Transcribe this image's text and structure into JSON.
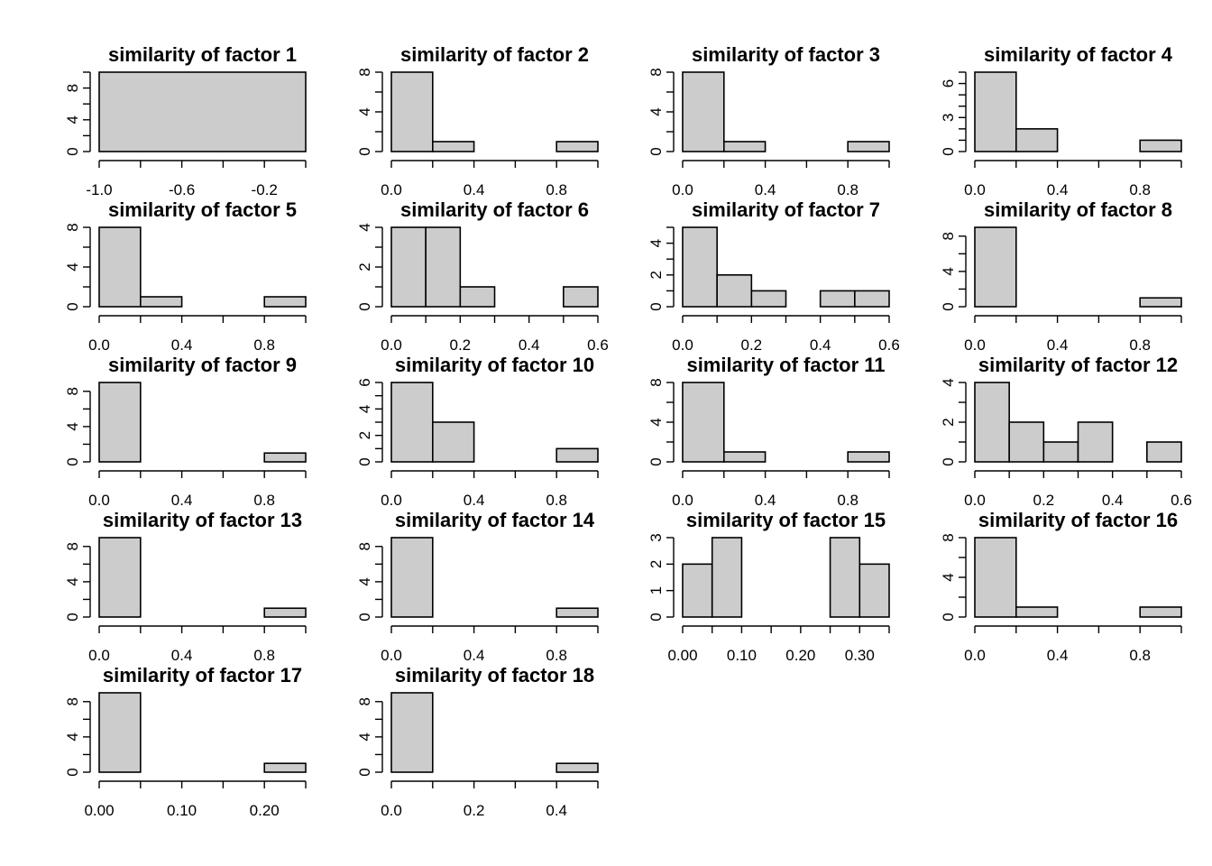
{
  "chart_data": [
    {
      "type": "bar",
      "title": "similarity of factor 1",
      "breaks": [
        -1.0,
        0.0
      ],
      "counts": [
        10
      ],
      "xlim": [
        -1.0,
        0.0
      ],
      "xticks": [
        -1.0,
        -0.8,
        -0.6,
        -0.4,
        -0.2,
        0.0
      ],
      "xtick_labels": [
        "-1.0",
        "-0.6",
        "-0.2"
      ],
      "xtick_label_positions": [
        -1.0,
        -0.6,
        -0.2
      ],
      "ylim": [
        0,
        10
      ],
      "yticks": [
        0,
        2,
        4,
        6,
        8,
        10
      ],
      "ytick_labels": [
        "0",
        "4",
        "8"
      ],
      "ytick_label_positions": [
        0,
        4,
        8
      ],
      "bar_fill": "#cccccc"
    },
    {
      "type": "bar",
      "title": "similarity of factor 2",
      "breaks": [
        0,
        0.2,
        0.4,
        0.6,
        0.8,
        1.0
      ],
      "counts": [
        8,
        1,
        0,
        0,
        1
      ],
      "xlim": [
        0,
        1.0
      ],
      "xticks": [
        0,
        0.2,
        0.4,
        0.6,
        0.8,
        1.0
      ],
      "xtick_labels": [
        "0.0",
        "0.4",
        "0.8"
      ],
      "xtick_label_positions": [
        0,
        0.4,
        0.8
      ],
      "ylim": [
        0,
        8
      ],
      "yticks": [
        0,
        2,
        4,
        6,
        8
      ],
      "ytick_labels": [
        "0",
        "4",
        "8"
      ],
      "ytick_label_positions": [
        0,
        4,
        8
      ],
      "bar_fill": "#cccccc"
    },
    {
      "type": "bar",
      "title": "similarity of factor 3",
      "breaks": [
        0,
        0.2,
        0.4,
        0.6,
        0.8,
        1.0
      ],
      "counts": [
        8,
        1,
        0,
        0,
        1
      ],
      "xlim": [
        0,
        1.0
      ],
      "xticks": [
        0,
        0.2,
        0.4,
        0.6,
        0.8,
        1.0
      ],
      "xtick_labels": [
        "0.0",
        "0.4",
        "0.8"
      ],
      "xtick_label_positions": [
        0,
        0.4,
        0.8
      ],
      "ylim": [
        0,
        8
      ],
      "yticks": [
        0,
        2,
        4,
        6,
        8
      ],
      "ytick_labels": [
        "0",
        "4",
        "8"
      ],
      "ytick_label_positions": [
        0,
        4,
        8
      ],
      "bar_fill": "#cccccc"
    },
    {
      "type": "bar",
      "title": "similarity of factor 4",
      "breaks": [
        0,
        0.2,
        0.4,
        0.6,
        0.8,
        1.0
      ],
      "counts": [
        7,
        2,
        0,
        0,
        1
      ],
      "xlim": [
        0,
        1.0
      ],
      "xticks": [
        0,
        0.2,
        0.4,
        0.6,
        0.8,
        1.0
      ],
      "xtick_labels": [
        "0.0",
        "0.4",
        "0.8"
      ],
      "xtick_label_positions": [
        0,
        0.4,
        0.8
      ],
      "ylim": [
        0,
        7
      ],
      "yticks": [
        0,
        1,
        2,
        3,
        4,
        5,
        6,
        7
      ],
      "ytick_labels": [
        "0",
        "3",
        "6"
      ],
      "ytick_label_positions": [
        0,
        3,
        6
      ],
      "bar_fill": "#cccccc"
    },
    {
      "type": "bar",
      "title": "similarity of factor 5",
      "breaks": [
        0,
        0.2,
        0.4,
        0.6,
        0.8,
        1.0
      ],
      "counts": [
        8,
        1,
        0,
        0,
        1
      ],
      "xlim": [
        0,
        1.0
      ],
      "xticks": [
        0,
        0.2,
        0.4,
        0.6,
        0.8,
        1.0
      ],
      "xtick_labels": [
        "0.0",
        "0.4",
        "0.8"
      ],
      "xtick_label_positions": [
        0,
        0.4,
        0.8
      ],
      "ylim": [
        0,
        8
      ],
      "yticks": [
        0,
        2,
        4,
        6,
        8
      ],
      "ytick_labels": [
        "0",
        "4",
        "8"
      ],
      "ytick_label_positions": [
        0,
        4,
        8
      ],
      "bar_fill": "#cccccc"
    },
    {
      "type": "bar",
      "title": "similarity of factor 6",
      "breaks": [
        0,
        0.1,
        0.2,
        0.3,
        0.4,
        0.5,
        0.6
      ],
      "counts": [
        4,
        4,
        1,
        0,
        0,
        1
      ],
      "xlim": [
        0,
        0.6
      ],
      "xticks": [
        0,
        0.1,
        0.2,
        0.3,
        0.4,
        0.5,
        0.6
      ],
      "xtick_labels": [
        "0.0",
        "0.2",
        "0.4",
        "0.6"
      ],
      "xtick_label_positions": [
        0,
        0.2,
        0.4,
        0.6
      ],
      "ylim": [
        0,
        4
      ],
      "yticks": [
        0,
        1,
        2,
        3,
        4
      ],
      "ytick_labels": [
        "0",
        "2",
        "4"
      ],
      "ytick_label_positions": [
        0,
        2,
        4
      ],
      "bar_fill": "#cccccc"
    },
    {
      "type": "bar",
      "title": "similarity of factor 7",
      "breaks": [
        0,
        0.1,
        0.2,
        0.3,
        0.4,
        0.5,
        0.6
      ],
      "counts": [
        5,
        2,
        1,
        0,
        1,
        1
      ],
      "xlim": [
        0,
        0.6
      ],
      "xticks": [
        0,
        0.1,
        0.2,
        0.3,
        0.4,
        0.5,
        0.6
      ],
      "xtick_labels": [
        "0.0",
        "0.2",
        "0.4",
        "0.6"
      ],
      "xtick_label_positions": [
        0,
        0.2,
        0.4,
        0.6
      ],
      "ylim": [
        0,
        5
      ],
      "yticks": [
        0,
        1,
        2,
        3,
        4,
        5
      ],
      "ytick_labels": [
        "0",
        "2",
        "4"
      ],
      "ytick_label_positions": [
        0,
        2,
        4
      ],
      "bar_fill": "#cccccc"
    },
    {
      "type": "bar",
      "title": "similarity of factor 8",
      "breaks": [
        0,
        0.2,
        0.4,
        0.6,
        0.8,
        1.0
      ],
      "counts": [
        9,
        0,
        0,
        0,
        1
      ],
      "xlim": [
        0,
        1.0
      ],
      "xticks": [
        0,
        0.2,
        0.4,
        0.6,
        0.8,
        1.0
      ],
      "xtick_labels": [
        "0.0",
        "0.4",
        "0.8"
      ],
      "xtick_label_positions": [
        0,
        0.4,
        0.8
      ],
      "ylim": [
        0,
        9
      ],
      "yticks": [
        0,
        2,
        4,
        6,
        8
      ],
      "ytick_labels": [
        "0",
        "4",
        "8"
      ],
      "ytick_label_positions": [
        0,
        4,
        8
      ],
      "bar_fill": "#cccccc"
    },
    {
      "type": "bar",
      "title": "similarity of factor 9",
      "breaks": [
        0,
        0.2,
        0.4,
        0.6,
        0.8,
        1.0
      ],
      "counts": [
        9,
        0,
        0,
        0,
        1
      ],
      "xlim": [
        0,
        1.0
      ],
      "xticks": [
        0,
        0.2,
        0.4,
        0.6,
        0.8,
        1.0
      ],
      "xtick_labels": [
        "0.0",
        "0.4",
        "0.8"
      ],
      "xtick_label_positions": [
        0,
        0.4,
        0.8
      ],
      "ylim": [
        0,
        9
      ],
      "yticks": [
        0,
        2,
        4,
        6,
        8
      ],
      "ytick_labels": [
        "0",
        "4",
        "8"
      ],
      "ytick_label_positions": [
        0,
        4,
        8
      ],
      "bar_fill": "#cccccc"
    },
    {
      "type": "bar",
      "title": "similarity of factor 10",
      "breaks": [
        0,
        0.2,
        0.4,
        0.6,
        0.8,
        1.0
      ],
      "counts": [
        6,
        3,
        0,
        0,
        1
      ],
      "xlim": [
        0,
        1.0
      ],
      "xticks": [
        0,
        0.2,
        0.4,
        0.6,
        0.8,
        1.0
      ],
      "xtick_labels": [
        "0.0",
        "0.4",
        "0.8"
      ],
      "xtick_label_positions": [
        0,
        0.4,
        0.8
      ],
      "ylim": [
        0,
        6
      ],
      "yticks": [
        0,
        1,
        2,
        3,
        4,
        5,
        6
      ],
      "ytick_labels": [
        "0",
        "2",
        "4",
        "6"
      ],
      "ytick_label_positions": [
        0,
        2,
        4,
        6
      ],
      "bar_fill": "#cccccc"
    },
    {
      "type": "bar",
      "title": "similarity of factor 11",
      "breaks": [
        0,
        0.2,
        0.4,
        0.6,
        0.8,
        1.0
      ],
      "counts": [
        8,
        1,
        0,
        0,
        1
      ],
      "xlim": [
        0,
        1.0
      ],
      "xticks": [
        0,
        0.2,
        0.4,
        0.6,
        0.8,
        1.0
      ],
      "xtick_labels": [
        "0.0",
        "0.4",
        "0.8"
      ],
      "xtick_label_positions": [
        0,
        0.4,
        0.8
      ],
      "ylim": [
        0,
        8
      ],
      "yticks": [
        0,
        2,
        4,
        6,
        8
      ],
      "ytick_labels": [
        "0",
        "4",
        "8"
      ],
      "ytick_label_positions": [
        0,
        4,
        8
      ],
      "bar_fill": "#cccccc"
    },
    {
      "type": "bar",
      "title": "similarity of factor 12",
      "breaks": [
        0,
        0.1,
        0.2,
        0.3,
        0.4,
        0.5,
        0.6
      ],
      "counts": [
        4,
        2,
        1,
        2,
        0,
        1
      ],
      "xlim": [
        0,
        0.6
      ],
      "xticks": [
        0,
        0.1,
        0.2,
        0.3,
        0.4,
        0.5,
        0.6
      ],
      "xtick_labels": [
        "0.0",
        "0.2",
        "0.4",
        "0.6"
      ],
      "xtick_label_positions": [
        0,
        0.2,
        0.4,
        0.6
      ],
      "ylim": [
        0,
        4
      ],
      "yticks": [
        0,
        1,
        2,
        3,
        4
      ],
      "ytick_labels": [
        "0",
        "2",
        "4"
      ],
      "ytick_label_positions": [
        0,
        2,
        4
      ],
      "bar_fill": "#cccccc"
    },
    {
      "type": "bar",
      "title": "similarity of factor 13",
      "breaks": [
        0,
        0.2,
        0.4,
        0.6,
        0.8,
        1.0
      ],
      "counts": [
        9,
        0,
        0,
        0,
        1
      ],
      "xlim": [
        0,
        1.0
      ],
      "xticks": [
        0,
        0.2,
        0.4,
        0.6,
        0.8,
        1.0
      ],
      "xtick_labels": [
        "0.0",
        "0.4",
        "0.8"
      ],
      "xtick_label_positions": [
        0,
        0.4,
        0.8
      ],
      "ylim": [
        0,
        9
      ],
      "yticks": [
        0,
        2,
        4,
        6,
        8
      ],
      "ytick_labels": [
        "0",
        "4",
        "8"
      ],
      "ytick_label_positions": [
        0,
        4,
        8
      ],
      "bar_fill": "#cccccc"
    },
    {
      "type": "bar",
      "title": "similarity of factor 14",
      "breaks": [
        0,
        0.2,
        0.4,
        0.6,
        0.8,
        1.0
      ],
      "counts": [
        9,
        0,
        0,
        0,
        1
      ],
      "xlim": [
        0,
        1.0
      ],
      "xticks": [
        0,
        0.2,
        0.4,
        0.6,
        0.8,
        1.0
      ],
      "xtick_labels": [
        "0.0",
        "0.4",
        "0.8"
      ],
      "xtick_label_positions": [
        0,
        0.4,
        0.8
      ],
      "ylim": [
        0,
        9
      ],
      "yticks": [
        0,
        2,
        4,
        6,
        8
      ],
      "ytick_labels": [
        "0",
        "4",
        "8"
      ],
      "ytick_label_positions": [
        0,
        4,
        8
      ],
      "bar_fill": "#cccccc"
    },
    {
      "type": "bar",
      "title": "similarity of factor 15",
      "breaks": [
        0,
        0.05,
        0.1,
        0.15,
        0.2,
        0.25,
        0.3,
        0.35
      ],
      "counts": [
        2,
        3,
        0,
        0,
        0,
        3,
        2
      ],
      "xlim": [
        0,
        0.35
      ],
      "xticks": [
        0,
        0.05,
        0.1,
        0.15,
        0.2,
        0.25,
        0.3,
        0.35
      ],
      "xtick_labels": [
        "0.00",
        "0.10",
        "0.20",
        "0.30"
      ],
      "xtick_label_positions": [
        0,
        0.1,
        0.2,
        0.3
      ],
      "ylim": [
        0,
        3
      ],
      "yticks": [
        0,
        1,
        2,
        3
      ],
      "ytick_labels": [
        "0",
        "1",
        "2",
        "3"
      ],
      "ytick_label_positions": [
        0,
        1,
        2,
        3
      ],
      "bar_fill": "#cccccc"
    },
    {
      "type": "bar",
      "title": "similarity of factor 16",
      "breaks": [
        0,
        0.2,
        0.4,
        0.6,
        0.8,
        1.0
      ],
      "counts": [
        8,
        1,
        0,
        0,
        1
      ],
      "xlim": [
        0,
        1.0
      ],
      "xticks": [
        0,
        0.2,
        0.4,
        0.6,
        0.8,
        1.0
      ],
      "xtick_labels": [
        "0.0",
        "0.4",
        "0.8"
      ],
      "xtick_label_positions": [
        0,
        0.4,
        0.8
      ],
      "ylim": [
        0,
        8
      ],
      "yticks": [
        0,
        2,
        4,
        6,
        8
      ],
      "ytick_labels": [
        "0",
        "4",
        "8"
      ],
      "ytick_label_positions": [
        0,
        4,
        8
      ],
      "bar_fill": "#cccccc"
    },
    {
      "type": "bar",
      "title": "similarity of factor 17",
      "breaks": [
        0,
        0.05,
        0.1,
        0.15,
        0.2,
        0.25
      ],
      "counts": [
        9,
        0,
        0,
        0,
        1
      ],
      "xlim": [
        0,
        0.25
      ],
      "xticks": [
        0,
        0.05,
        0.1,
        0.15,
        0.2,
        0.25
      ],
      "xtick_labels": [
        "0.00",
        "0.10",
        "0.20"
      ],
      "xtick_label_positions": [
        0,
        0.1,
        0.2
      ],
      "ylim": [
        0,
        9
      ],
      "yticks": [
        0,
        2,
        4,
        6,
        8
      ],
      "ytick_labels": [
        "0",
        "4",
        "8"
      ],
      "ytick_label_positions": [
        0,
        4,
        8
      ],
      "bar_fill": "#cccccc"
    },
    {
      "type": "bar",
      "title": "similarity of factor 18",
      "breaks": [
        0,
        0.1,
        0.2,
        0.3,
        0.4,
        0.5
      ],
      "counts": [
        9,
        0,
        0,
        0,
        1
      ],
      "xlim": [
        0,
        0.5
      ],
      "xticks": [
        0,
        0.1,
        0.2,
        0.3,
        0.4,
        0.5
      ],
      "xtick_labels": [
        "0.0",
        "0.2",
        "0.4"
      ],
      "xtick_label_positions": [
        0,
        0.2,
        0.4
      ],
      "ylim": [
        0,
        9
      ],
      "yticks": [
        0,
        2,
        4,
        6,
        8
      ],
      "ytick_labels": [
        "0",
        "4",
        "8"
      ],
      "ytick_label_positions": [
        0,
        4,
        8
      ],
      "bar_fill": "#cccccc"
    }
  ]
}
